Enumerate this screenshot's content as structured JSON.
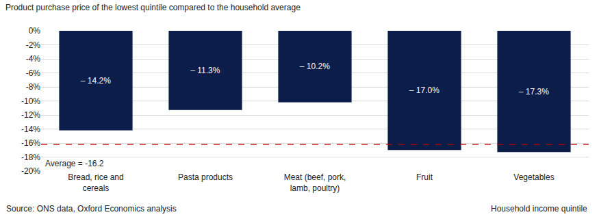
{
  "chart_data": {
    "type": "bar",
    "title": "Product purchase price of the lowest quintile compared to the household average",
    "x_label": "Household income quintile",
    "source": "Source: ONS data, Oxford Economics analysis",
    "categories": [
      "Bread, rice and cereals",
      "Pasta products",
      "Meat (beef, pork, lamb, poultry)",
      "Fruit",
      "Vegetables"
    ],
    "values": [
      -14.2,
      -11.3,
      -10.2,
      -17.0,
      -17.3
    ],
    "value_labels": [
      "– 14.2%",
      "– 11.3%",
      "– 10.2%",
      "– 17.0%",
      "– 17.3%"
    ],
    "data_labels": true,
    "color": "#0b1d48",
    "ylim": [
      -20,
      0
    ],
    "yticks": [
      {
        "value": 0,
        "label": "0%"
      },
      {
        "value": -2,
        "label": "-2%"
      },
      {
        "value": -4,
        "label": "-4%"
      },
      {
        "value": -6,
        "label": "-6%"
      },
      {
        "value": -8,
        "label": "-8%"
      },
      {
        "value": -10,
        "label": "-10%"
      },
      {
        "value": -12,
        "label": "-12%"
      },
      {
        "value": -14,
        "label": "-14%"
      },
      {
        "value": -16,
        "label": "-16%"
      },
      {
        "value": -18,
        "label": "-18%"
      },
      {
        "value": -20,
        "label": "-20%"
      }
    ],
    "grid": true,
    "reference_line": {
      "value": -16.2,
      "label": "Average = -16.2",
      "color": "#c00000",
      "line_style": "dashed"
    }
  }
}
